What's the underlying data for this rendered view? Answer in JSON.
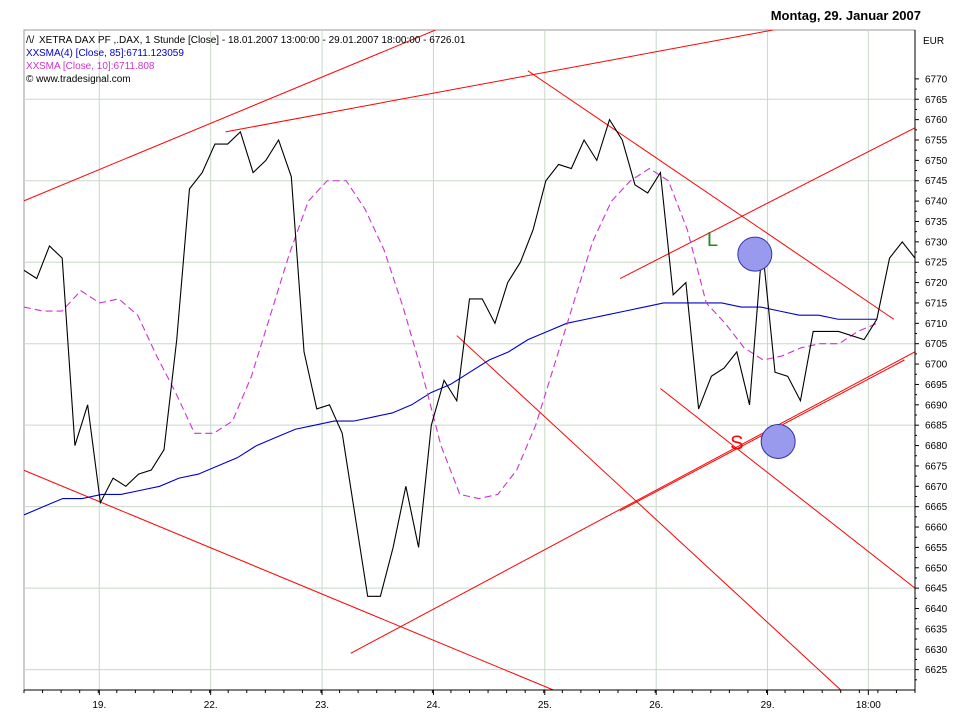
{
  "header": {
    "date": "Montag, 29. Januar 2007"
  },
  "legend": {
    "price": {
      "icon": "/\\/",
      "text": "XETRA DAX PF ,.DAX, 1 Stunde [Close] - 18.01.2007 13:00:00 - 29.01.2007 18:00:00 - 6726.01",
      "color": "#000000"
    },
    "sma4": {
      "icon": "XX",
      "text": "SMA(4) [Close, 85]:6711.123059",
      "color": "#0000cc"
    },
    "sma10": {
      "icon": "XX",
      "text": "SMA [Close, 10]:6711.808",
      "color": "#cc33cc"
    },
    "copyright": {
      "icon": "©",
      "text": "www.tradesignal.com"
    }
  },
  "chart_data": {
    "type": "line",
    "currency_label": "EUR",
    "ylim": [
      6620,
      6782
    ],
    "yticks": [
      6625,
      6630,
      6635,
      6640,
      6645,
      6650,
      6655,
      6660,
      6665,
      6670,
      6675,
      6680,
      6685,
      6690,
      6695,
      6700,
      6705,
      6710,
      6715,
      6720,
      6725,
      6730,
      6735,
      6740,
      6745,
      6750,
      6755,
      6760,
      6765,
      6770
    ],
    "xlim": [
      0,
      84
    ],
    "xticks": [
      {
        "x": 7.1,
        "label": "19."
      },
      {
        "x": 17.6,
        "label": "22."
      },
      {
        "x": 28.1,
        "label": "23."
      },
      {
        "x": 38.6,
        "label": "24."
      },
      {
        "x": 49.1,
        "label": "25."
      },
      {
        "x": 59.6,
        "label": "26."
      },
      {
        "x": 70.1,
        "label": "29."
      },
      {
        "x": 79.6,
        "label": "18:00"
      }
    ],
    "grid": true,
    "series": [
      {
        "name": "XETRA DAX PF ,.DAX, 1 Stunde [Close]",
        "color": "#000000",
        "values": [
          6723,
          6721,
          6729,
          6726,
          6680,
          6690,
          6666,
          6672,
          6670,
          6673,
          6674,
          6679,
          6706,
          6743,
          6747,
          6754,
          6754,
          6757,
          6747,
          6750,
          6755,
          6746,
          6703,
          6689,
          6690,
          6683,
          6663,
          6643,
          6643,
          6655,
          6670,
          6655,
          6685,
          6696,
          6691,
          6716,
          6716,
          6710,
          6720,
          6725,
          6733,
          6745,
          6749,
          6748,
          6755,
          6750,
          6760,
          6755,
          6744,
          6742,
          6747,
          6717,
          6720,
          6689,
          6697,
          6699,
          6703,
          6690,
          6729,
          6698,
          6697,
          6691,
          6708,
          6708,
          6708,
          6707,
          6706,
          6711,
          6726,
          6730,
          6726
        ]
      },
      {
        "name": "SMA(4) [Close, 85]",
        "color": "#0000cc",
        "values": [
          6663,
          6665,
          6667,
          6667,
          6668,
          6668,
          6669,
          6670,
          6672,
          6673,
          6675,
          6677,
          6680,
          6682,
          6684,
          6685,
          6686,
          6686,
          6687,
          6688,
          6690,
          6693,
          6695,
          6698,
          6701,
          6703,
          6706,
          6708,
          6710,
          6711,
          6712,
          6713,
          6714,
          6715,
          6715,
          6715,
          6715,
          6714,
          6714,
          6713,
          6712,
          6712,
          6711,
          6711,
          6711
        ]
      },
      {
        "name": "SMA [Close, 10]",
        "color": "#cc33cc",
        "values": [
          6714,
          6713,
          6713,
          6718,
          6715,
          6716,
          6712,
          6702,
          6693,
          6683,
          6683,
          6686,
          6697,
          6712,
          6727,
          6740,
          6745,
          6745,
          6738,
          6728,
          6714,
          6698,
          6680,
          6668,
          6667,
          6668,
          6674,
          6685,
          6700,
          6715,
          6730,
          6740,
          6745,
          6748,
          6745,
          6733,
          6715,
          6710,
          6704,
          6701,
          6702,
          6704,
          6705,
          6705,
          6708,
          6710
        ]
      }
    ],
    "annotations": [
      {
        "type": "text",
        "text": "L",
        "x": 64.9,
        "y": 6729,
        "color": "#228b22"
      },
      {
        "type": "text",
        "text": "S",
        "x": 67.2,
        "y": 6679,
        "color": "#ff0000"
      },
      {
        "type": "circle",
        "x": 68.9,
        "y": 6727,
        "color": "#9999ee"
      },
      {
        "type": "circle",
        "x": 71.1,
        "y": 6681,
        "color": "#9999ee"
      }
    ],
    "trendlines": [
      {
        "from": [
          -1,
          6739
        ],
        "to": [
          42.5,
          6786
        ],
        "color": "#ff0000"
      },
      {
        "from": [
          19.0,
          6757
        ],
        "to": [
          83.0,
          6788
        ],
        "color": "#ff0000"
      },
      {
        "from": [
          47.5,
          6772
        ],
        "to": [
          82.0,
          6711
        ],
        "color": "#ff0000"
      },
      {
        "from": [
          56.2,
          6721
        ],
        "to": [
          84.0,
          6758
        ],
        "color": "#ff0000"
      },
      {
        "from": [
          -1,
          6675
        ],
        "to": [
          49.9,
          6620
        ],
        "color": "#ff0000"
      },
      {
        "from": [
          30.8,
          6629
        ],
        "to": [
          84.0,
          6703
        ],
        "color": "#ff0000"
      },
      {
        "from": [
          56.2,
          6664
        ],
        "to": [
          83.0,
          6701
        ],
        "color": "#ff0000"
      },
      {
        "from": [
          40.8,
          6707
        ],
        "to": [
          77.0,
          6620
        ],
        "color": "#ff0000"
      },
      {
        "from": [
          60.0,
          6694
        ],
        "to": [
          84.0,
          6645
        ],
        "color": "#ff0000"
      }
    ]
  }
}
